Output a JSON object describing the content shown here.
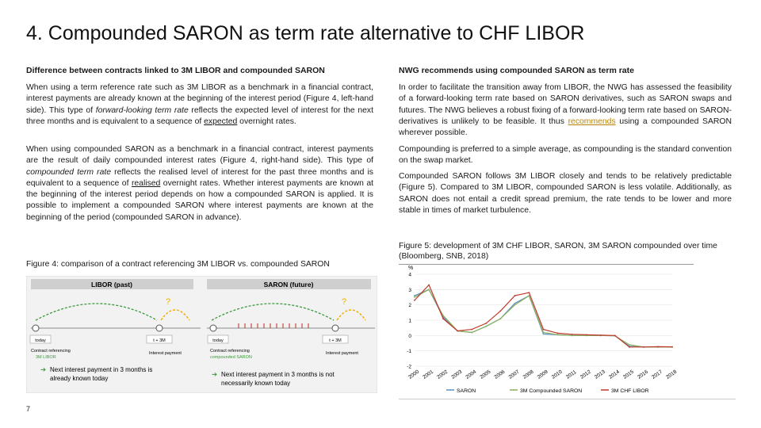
{
  "title": "4. Compounded SARON as term rate alternative to CHF LIBOR",
  "left": {
    "heading": "Difference between contracts linked to 3M LIBOR and compounded SARON",
    "p1_a": "When using a term reference rate such as 3M LIBOR as a benchmark in a financial contract, interest payments are already known at the beginning of the interest period (Figure 4, left-hand side). This type of ",
    "p1_em": "forward-looking term rate",
    "p1_b": " reflects the expected level of interest for the next three months and is equivalent to a sequence of ",
    "p1_u": "expected",
    "p1_c": " overnight rates.",
    "p2_a": "When using compounded SARON as a benchmark in a financial contract, interest payments are the result of daily compounded interest rates (Figure 4, right-hand side). This type of ",
    "p2_em": "compounded term rate",
    "p2_b": " reflects the realised level of interest for the past three months and is equivalent to a sequence of ",
    "p2_u": "realised",
    "p2_c": " overnight rates. Whether interest payments are known at the beginning of the interest period depends on how a compounded SARON is applied. It is possible to implement a compounded SARON where interest payments are known at the beginning of the period (compounded SARON in advance).",
    "fig_caption": "Figure 4: comparison of a contract referencing 3M LIBOR vs. compounded SARON"
  },
  "right": {
    "heading": "NWG recommends using compounded SARON as term rate",
    "p1_a": "In order to facilitate the transition away from LIBOR, the NWG has assessed the feasibility of a forward-looking term rate based on SARON derivatives, such as SARON swaps and futures. The NWG believes a robust fixing of a forward-looking term rate based on SARON-derivatives is unlikely to be feasible. It thus ",
    "p1_link": "recommends",
    "p1_b": " using a compounded SARON wherever possible.",
    "p2": "Compounding is preferred to a simple average, as compounding is the standard convention on the swap market.",
    "p3": "Compounded SARON follows 3M LIBOR closely and tends to be relatively predictable (Figure 5). Compared to 3M LIBOR, compounded SARON is less volatile. Additionally, as SARON does not entail a credit spread premium, the rate tends to be lower and more stable in times of market turbulence.",
    "fig_caption": "Figure 5: development of 3M CHF LIBOR, SARON, 3M SARON compounded over time (Bloomberg, SNB, 2018)"
  },
  "fig4": {
    "left_title": "LIBOR (past)",
    "right_title": "SARON (future)",
    "question": "?",
    "today": "today",
    "t3m": "t + 3M",
    "left_ref_1": "Contract referencing",
    "left_ref_2": "3M LIBOR",
    "left_pay": "Interest payment",
    "right_ref_1": "Contract referencing",
    "right_ref_2": "compounded SARON",
    "right_pay": "Interest payment",
    "left_note_1": "Next interest payment in 3 months is",
    "left_note_2": "already known today",
    "right_note_1": "Next interest payment in 3 months is not",
    "right_note_2": "necessarily known today",
    "colors": {
      "left_header": "#c8c8c8",
      "right_header": "#c8c8c8",
      "arrow": "#f0b000",
      "bracket": "#3a9a3a",
      "saron_green": "#3a9a3a"
    }
  },
  "chart_data": {
    "type": "line",
    "title": "",
    "xlabel": "",
    "ylabel": "%",
    "ylim": [
      -2,
      4
    ],
    "yticks": [
      "4",
      "3",
      "2",
      "1",
      "0",
      "-1",
      "-2"
    ],
    "x": [
      "2000",
      "2001",
      "2002",
      "2003",
      "2004",
      "2005",
      "2006",
      "2007",
      "2008",
      "2009",
      "2010",
      "2011",
      "2012",
      "2013",
      "2014",
      "2015",
      "2016",
      "2017",
      "2018"
    ],
    "series": [
      {
        "name": "SARON",
        "color": "#5b8fc9",
        "values": [
          2.6,
          3.0,
          1.2,
          0.3,
          0.2,
          0.6,
          1.1,
          2.1,
          2.6,
          0.1,
          0.05,
          0.0,
          0.0,
          0.0,
          -0.02,
          -0.7,
          -0.75,
          -0.75,
          -0.75
        ]
      },
      {
        "name": "3M Compounded SARON",
        "color": "#8ab05a",
        "values": [
          2.5,
          3.0,
          1.3,
          0.3,
          0.2,
          0.6,
          1.1,
          2.0,
          2.6,
          0.2,
          0.05,
          0.0,
          0.0,
          0.0,
          -0.02,
          -0.6,
          -0.75,
          -0.75,
          -0.75
        ]
      },
      {
        "name": "3M CHF LIBOR",
        "color": "#c0392b",
        "values": [
          2.3,
          3.3,
          1.1,
          0.3,
          0.4,
          0.8,
          1.6,
          2.6,
          2.8,
          0.4,
          0.15,
          0.08,
          0.05,
          0.02,
          0.0,
          -0.75,
          -0.75,
          -0.73,
          -0.74
        ]
      }
    ],
    "legend": "bottom"
  },
  "page_number": "7"
}
